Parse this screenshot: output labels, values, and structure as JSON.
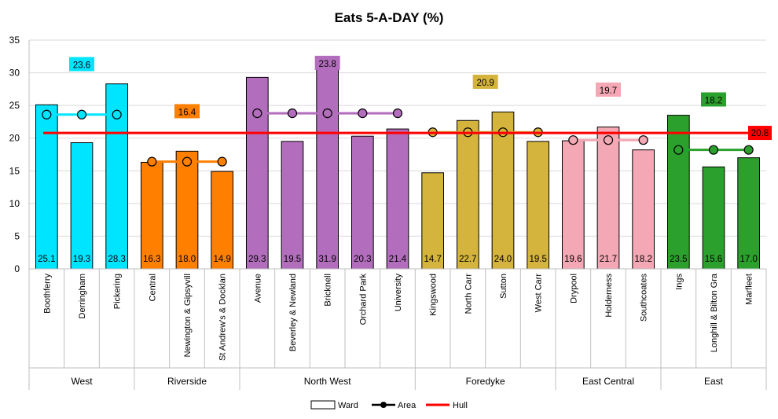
{
  "chart_data": {
    "type": "bar",
    "title": "Eats 5-A-DAY (%)",
    "ylim": [
      0,
      35
    ],
    "yticks": [
      "0",
      "5",
      "10",
      "15",
      "20",
      "25",
      "30",
      "35"
    ],
    "grid": true,
    "legend_position": "bottom",
    "groups": [
      {
        "name": "West",
        "color": "#00E5FF",
        "area": 23.6,
        "area_label": "23.6",
        "label_bg": "#00E5FF",
        "wards": [
          {
            "name": "Boothferry",
            "value": 25.1,
            "label": "25.1"
          },
          {
            "name": "Derringham",
            "value": 19.3,
            "label": "19.3"
          },
          {
            "name": "Pickering",
            "value": 28.3,
            "label": "28.3"
          }
        ]
      },
      {
        "name": "Riverside",
        "color": "#FF7F00",
        "area": 16.4,
        "area_label": "16.4",
        "label_bg": "#FF7F00",
        "wards": [
          {
            "name": "Central",
            "value": 16.3,
            "label": "16.3"
          },
          {
            "name": "Newington & Gipsyvill",
            "value": 18.0,
            "label": "18.0"
          },
          {
            "name": "St Andrew's & Docklan",
            "value": 14.9,
            "label": "14.9"
          }
        ]
      },
      {
        "name": "North West",
        "color": "#B26EBC",
        "area": 23.8,
        "area_label": "23.8",
        "label_bg": "#B26EBC",
        "wards": [
          {
            "name": "Avenue",
            "value": 29.3,
            "label": "29.3"
          },
          {
            "name": "Beverley & Newland",
            "value": 19.5,
            "label": "19.5"
          },
          {
            "name": "Bricknell",
            "value": 31.9,
            "label": "31.9"
          },
          {
            "name": "Orchard Park",
            "value": 20.3,
            "label": "20.3"
          },
          {
            "name": "University",
            "value": 21.4,
            "label": "21.4"
          }
        ]
      },
      {
        "name": "Foredyke",
        "color": "#D4B43C",
        "area": 20.9,
        "area_label": "20.9",
        "label_bg": "#D4B43C",
        "wards": [
          {
            "name": "Kingswood",
            "value": 14.7,
            "label": "14.7"
          },
          {
            "name": "North Carr",
            "value": 22.7,
            "label": "22.7"
          },
          {
            "name": "Sutton",
            "value": 24.0,
            "label": "24.0"
          },
          {
            "name": "West Carr",
            "value": 19.5,
            "label": "19.5"
          }
        ]
      },
      {
        "name": "East Central",
        "color": "#F4A7B4",
        "area": 19.7,
        "area_label": "19.7",
        "label_bg": "#F4A7B4",
        "wards": [
          {
            "name": "Drypool",
            "value": 19.6,
            "label": "19.6"
          },
          {
            "name": "Holderness",
            "value": 21.7,
            "label": "21.7"
          },
          {
            "name": "Southcoates",
            "value": 18.2,
            "label": "18.2"
          }
        ]
      },
      {
        "name": "East",
        "color": "#2CA02C",
        "area": 18.2,
        "area_label": "18.2",
        "label_bg": "#2CA02C",
        "wards": [
          {
            "name": "Ings",
            "value": 23.5,
            "label": "23.5"
          },
          {
            "name": "Longhill & Bilton Gra",
            "value": 15.6,
            "label": "15.6"
          },
          {
            "name": "Marfleet",
            "value": 17.0,
            "label": "17.0"
          }
        ]
      }
    ],
    "hull": {
      "value": 20.8,
      "label": "20.8",
      "color": "#FF0000"
    },
    "legend": [
      {
        "key": "ward",
        "label": "Ward"
      },
      {
        "key": "area",
        "label": "Area"
      },
      {
        "key": "hull",
        "label": "Hull"
      }
    ]
  }
}
